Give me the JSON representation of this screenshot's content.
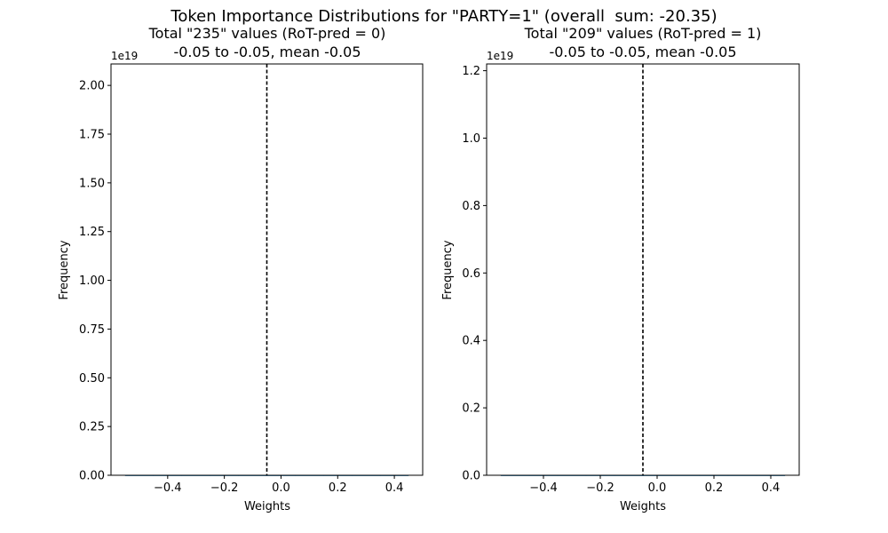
{
  "figure": {
    "suptitle": "Token Importance Distributions for \"PARTY=1\" (overall  sum: -20.35)"
  },
  "chart_data": [
    {
      "type": "bar",
      "title": "Total \"235\" values (RoT-pred = 0)",
      "subtitle": "-0.05 to -0.05, mean -0.05",
      "xlabel": "Weights",
      "ylabel": "Frequency",
      "offset_text": "1e19",
      "xlim": [
        -0.6,
        0.5
      ],
      "ylim": [
        0,
        2.11
      ],
      "xticks": [
        -0.4,
        -0.2,
        0.0,
        0.2,
        0.4
      ],
      "xtick_labels": [
        "−0.4",
        "−0.2",
        "0.0",
        "0.2",
        "0.4"
      ],
      "yticks": [
        0,
        0.25,
        0.5,
        0.75,
        1.0,
        1.25,
        1.5,
        1.75,
        2.0
      ],
      "ytick_labels": [
        "0.00",
        "0.25",
        "0.50",
        "0.75",
        "1.00",
        "1.25",
        "1.50",
        "1.75",
        "2.00"
      ],
      "histogram": {
        "x_start": -0.55,
        "x_end": 0.45,
        "values": [
          0,
          0,
          0,
          0,
          0,
          0,
          0,
          0,
          0,
          0
        ]
      },
      "mean_line": {
        "x": -0.05,
        "style": "dashed",
        "color": "#000000"
      },
      "grid": false
    },
    {
      "type": "bar",
      "title": "Total \"209\" values (RoT-pred = 1)",
      "subtitle": "-0.05 to -0.05, mean -0.05",
      "xlabel": "Weights",
      "ylabel": "Frequency",
      "offset_text": "1e19",
      "xlim": [
        -0.6,
        0.5
      ],
      "ylim": [
        0,
        1.22
      ],
      "xticks": [
        -0.4,
        -0.2,
        0.0,
        0.2,
        0.4
      ],
      "xtick_labels": [
        "−0.4",
        "−0.2",
        "0.0",
        "0.2",
        "0.4"
      ],
      "yticks": [
        0,
        0.2,
        0.4,
        0.6,
        0.8,
        1.0,
        1.2
      ],
      "ytick_labels": [
        "0.0",
        "0.2",
        "0.4",
        "0.6",
        "0.8",
        "1.0",
        "1.2"
      ],
      "histogram": {
        "x_start": -0.55,
        "x_end": 0.45,
        "values": [
          0,
          0,
          0,
          0,
          0,
          0,
          0,
          0,
          0,
          0
        ]
      },
      "mean_line": {
        "x": -0.05,
        "style": "dashed",
        "color": "#000000"
      },
      "grid": false
    }
  ]
}
